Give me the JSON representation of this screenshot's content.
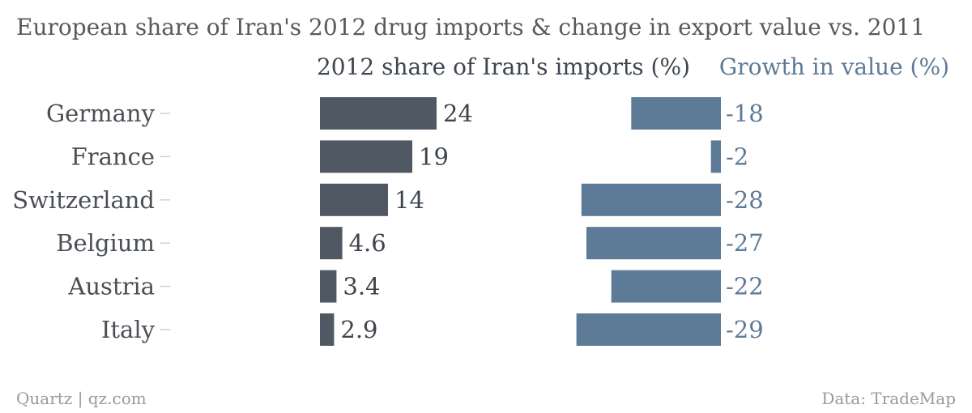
{
  "title": "European share of Iran's 2012 drug imports & change in export value vs. 2011",
  "footer": {
    "source_left": "Quartz | qz.com",
    "source_right": "Data: TradeMap"
  },
  "colors": {
    "title": "#58595b",
    "share_bar": "#4f5863",
    "growth_bar": "#5d7a96",
    "tick": "#cfcfcf",
    "footer": "#9a9a9a"
  },
  "chart_data": {
    "type": "bar",
    "title": "European share of Iran's 2012 drug imports & change in export value vs. 2011",
    "categories": [
      "Germany",
      "France",
      "Switzerland",
      "Belgium",
      "Austria",
      "Italy"
    ],
    "series": [
      {
        "name": "2012 share of Iran's imports (%)",
        "labels": [
          "24",
          "19",
          "14",
          "4.6",
          "3.4",
          "2.9"
        ],
        "values": [
          24,
          19,
          14,
          4.6,
          3.4,
          2.9
        ]
      },
      {
        "name": "Growth in value (%)",
        "labels": [
          "-18",
          "-2",
          "-28",
          "-27",
          "-22",
          "-29"
        ],
        "values": [
          -18,
          -2,
          -28,
          -27,
          -22,
          -29
        ]
      }
    ],
    "orientation": "horizontal",
    "grid": false,
    "legend": "column headers above panels"
  }
}
